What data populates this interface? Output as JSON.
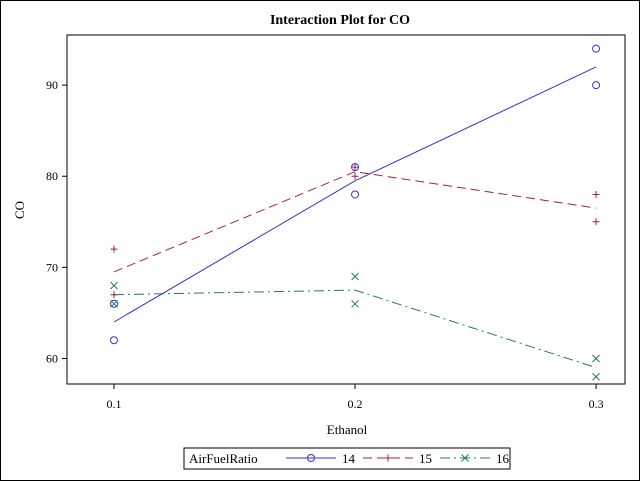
{
  "chart_data": {
    "type": "line",
    "title": "Interaction Plot for CO",
    "xlabel": "Ethanol",
    "ylabel": "CO",
    "x_ticks": [
      0.1,
      0.2,
      0.3
    ],
    "x_tick_labels": [
      "0.1",
      "0.2",
      "0.3"
    ],
    "y_ticks": [
      60,
      70,
      80,
      90
    ],
    "y_tick_labels": [
      "60",
      "70",
      "80",
      "90"
    ],
    "xlim": [
      0.0805,
      0.312
    ],
    "ylim": [
      57.2,
      95.5
    ],
    "legend": {
      "title": "AirFuelRatio",
      "position": "bottom-center"
    },
    "series": [
      {
        "name": "14",
        "color": "#3333cc",
        "marker": "circle",
        "line_style": "solid",
        "points": [
          {
            "x": 0.1,
            "y": 66
          },
          {
            "x": 0.1,
            "y": 62
          },
          {
            "x": 0.2,
            "y": 81
          },
          {
            "x": 0.2,
            "y": 78
          },
          {
            "x": 0.3,
            "y": 94
          },
          {
            "x": 0.3,
            "y": 90
          }
        ],
        "fit": [
          {
            "x": 0.1,
            "y": 64
          },
          {
            "x": 0.2,
            "y": 79.5
          },
          {
            "x": 0.3,
            "y": 92
          }
        ]
      },
      {
        "name": "15",
        "color": "#a0203c",
        "marker": "plus",
        "line_style": "dashed",
        "points": [
          {
            "x": 0.1,
            "y": 72
          },
          {
            "x": 0.1,
            "y": 67
          },
          {
            "x": 0.2,
            "y": 81
          },
          {
            "x": 0.2,
            "y": 80
          },
          {
            "x": 0.3,
            "y": 78
          },
          {
            "x": 0.3,
            "y": 75
          }
        ],
        "fit": [
          {
            "x": 0.1,
            "y": 69.5
          },
          {
            "x": 0.2,
            "y": 80.5
          },
          {
            "x": 0.3,
            "y": 76.5
          }
        ]
      },
      {
        "name": "16",
        "color": "#1f7a68",
        "marker": "x",
        "line_style": "dashdot",
        "points": [
          {
            "x": 0.1,
            "y": 68
          },
          {
            "x": 0.1,
            "y": 66
          },
          {
            "x": 0.2,
            "y": 69
          },
          {
            "x": 0.2,
            "y": 66
          },
          {
            "x": 0.3,
            "y": 60
          },
          {
            "x": 0.3,
            "y": 58
          }
        ],
        "fit": [
          {
            "x": 0.1,
            "y": 67
          },
          {
            "x": 0.2,
            "y": 67.5
          },
          {
            "x": 0.3,
            "y": 59
          }
        ]
      }
    ]
  }
}
